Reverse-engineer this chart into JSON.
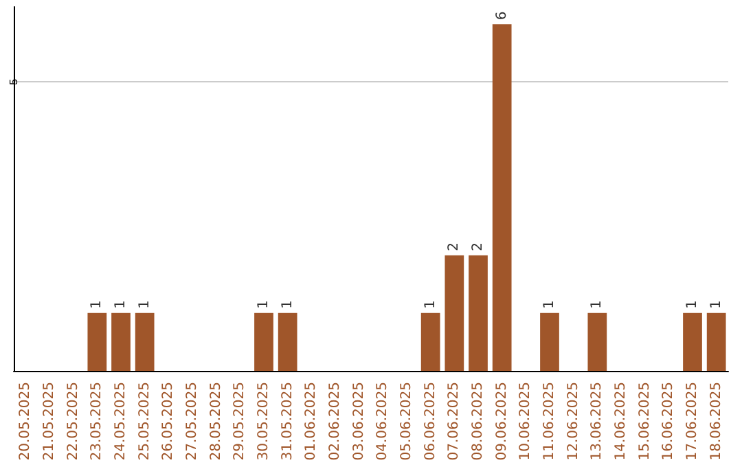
{
  "chart_data": {
    "type": "bar",
    "categories": [
      "20.05.2025",
      "21.05.2025",
      "22.05.2025",
      "23.05.2025",
      "24.05.2025",
      "25.05.2025",
      "26.05.2025",
      "27.05.2025",
      "28.05.2025",
      "29.05.2025",
      "30.05.2025",
      "31.05.2025",
      "01.06.2025",
      "02.06.2025",
      "03.06.2025",
      "04.06.2025",
      "05.06.2025",
      "06.06.2025",
      "07.06.2025",
      "08.06.2025",
      "09.06.2025",
      "10.06.2025",
      "11.06.2025",
      "12.06.2025",
      "13.06.2025",
      "14.06.2025",
      "15.06.2025",
      "16.06.2025",
      "17.06.2025",
      "18.06.2025"
    ],
    "values": [
      0,
      0,
      0,
      1,
      1,
      1,
      0,
      0,
      0,
      0,
      1,
      1,
      0,
      0,
      0,
      0,
      0,
      1,
      2,
      2,
      6,
      0,
      1,
      0,
      1,
      0,
      0,
      0,
      1,
      1
    ],
    "value_labels": [
      null,
      null,
      null,
      "1",
      "1",
      "1",
      null,
      null,
      null,
      null,
      "1",
      "1",
      null,
      null,
      null,
      null,
      null,
      "1",
      "2",
      "2",
      "6",
      null,
      "1",
      null,
      "1",
      null,
      null,
      null,
      "1",
      "1"
    ],
    "color": "#a0562a",
    "ylim": [
      0,
      6.3
    ],
    "yticks": [
      5
    ],
    "grid": "y"
  }
}
